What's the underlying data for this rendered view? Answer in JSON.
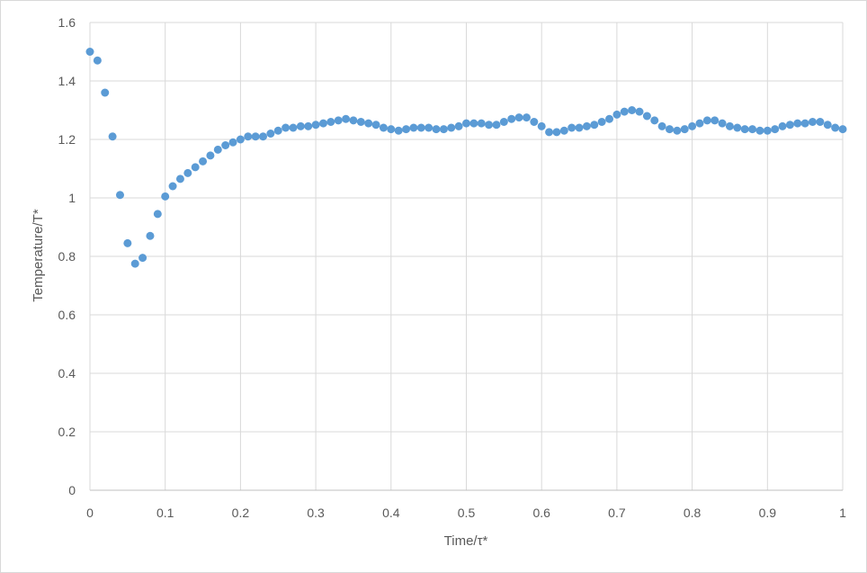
{
  "chart_data": {
    "type": "scatter",
    "title": "",
    "xlabel": "Time/τ*",
    "ylabel": "Temperature/T*",
    "xlim": [
      0,
      1
    ],
    "ylim": [
      0,
      1.6
    ],
    "x_ticks": [
      "0",
      "0.1",
      "0.2",
      "0.3",
      "0.4",
      "0.5",
      "0.6",
      "0.7",
      "0.8",
      "0.9",
      "1"
    ],
    "y_ticks": [
      "0",
      "0.2",
      "0.4",
      "0.6",
      "0.8",
      "1",
      "1.2",
      "1.4",
      "1.6"
    ],
    "grid": true,
    "legend": "none",
    "marker_color": "#5b9bd5",
    "grid_color": "#d9d9d9",
    "series": [
      {
        "x": [
          0,
          0.01,
          0.02,
          0.03,
          0.04,
          0.05,
          0.06,
          0.07,
          0.08,
          0.09,
          0.1,
          0.11,
          0.12,
          0.13,
          0.14,
          0.15,
          0.16,
          0.17,
          0.18,
          0.19,
          0.2,
          0.21,
          0.22,
          0.23,
          0.24,
          0.25,
          0.26,
          0.27,
          0.28,
          0.29,
          0.3,
          0.31,
          0.32,
          0.33,
          0.34,
          0.35,
          0.36,
          0.37,
          0.38,
          0.39,
          0.4,
          0.41,
          0.42,
          0.43,
          0.44,
          0.45,
          0.46,
          0.47,
          0.48,
          0.49,
          0.5,
          0.51,
          0.52,
          0.53,
          0.54,
          0.55,
          0.56,
          0.57,
          0.58,
          0.59,
          0.6,
          0.61,
          0.62,
          0.63,
          0.64,
          0.65,
          0.66,
          0.67,
          0.68,
          0.69,
          0.7,
          0.71,
          0.72,
          0.73,
          0.74,
          0.75,
          0.76,
          0.77,
          0.78,
          0.79,
          0.8,
          0.81,
          0.82,
          0.83,
          0.84,
          0.85,
          0.86,
          0.87,
          0.88,
          0.89,
          0.9,
          0.91,
          0.92,
          0.93,
          0.94,
          0.95,
          0.96,
          0.97,
          0.98,
          0.99,
          1.0
        ],
        "y": [
          1.5,
          1.47,
          1.36,
          1.21,
          1.01,
          0.845,
          0.775,
          0.795,
          0.87,
          0.945,
          1.005,
          1.04,
          1.065,
          1.085,
          1.105,
          1.125,
          1.145,
          1.165,
          1.18,
          1.19,
          1.2,
          1.21,
          1.21,
          1.21,
          1.22,
          1.23,
          1.24,
          1.24,
          1.245,
          1.245,
          1.25,
          1.255,
          1.26,
          1.265,
          1.27,
          1.265,
          1.26,
          1.255,
          1.25,
          1.24,
          1.235,
          1.23,
          1.235,
          1.24,
          1.24,
          1.24,
          1.235,
          1.235,
          1.24,
          1.245,
          1.255,
          1.255,
          1.255,
          1.25,
          1.25,
          1.26,
          1.27,
          1.275,
          1.275,
          1.26,
          1.245,
          1.225,
          1.225,
          1.23,
          1.24,
          1.24,
          1.245,
          1.25,
          1.26,
          1.27,
          1.285,
          1.295,
          1.3,
          1.295,
          1.28,
          1.265,
          1.245,
          1.235,
          1.23,
          1.235,
          1.245,
          1.255,
          1.265,
          1.265,
          1.255,
          1.245,
          1.24,
          1.235,
          1.235,
          1.23,
          1.23,
          1.235,
          1.245,
          1.25,
          1.255,
          1.255,
          1.26,
          1.26,
          1.25,
          1.24,
          1.235
        ]
      }
    ]
  }
}
